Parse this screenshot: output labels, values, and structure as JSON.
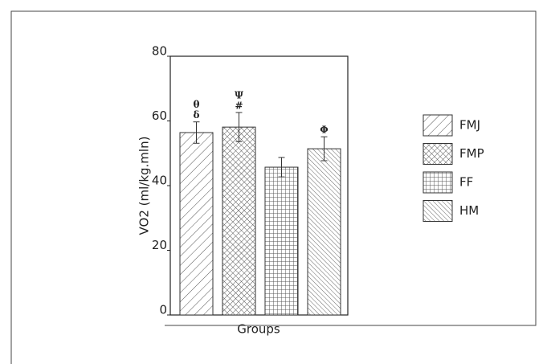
{
  "chart_data": {
    "type": "bar",
    "categories": [
      "FMJ",
      "FMP",
      "FF",
      "HM"
    ],
    "values": [
      56.4,
      58.1,
      45.7,
      51.4
    ],
    "errors": [
      3.3,
      4.5,
      3.0,
      3.7
    ],
    "annotations": [
      [
        "θ",
        "δ"
      ],
      [
        "Ψ",
        "#"
      ],
      null,
      [
        "Φ"
      ]
    ],
    "patterns": [
      "diagonal",
      "crosshatch",
      "grid",
      "back-diagonal"
    ],
    "color": "#333333",
    "ylabel": "VO2 (ml/kg.mln)",
    "xlabel": "Groups",
    "ylim": [
      0,
      80
    ],
    "yticks": [
      0,
      20,
      40,
      60,
      80
    ],
    "grid": false
  }
}
